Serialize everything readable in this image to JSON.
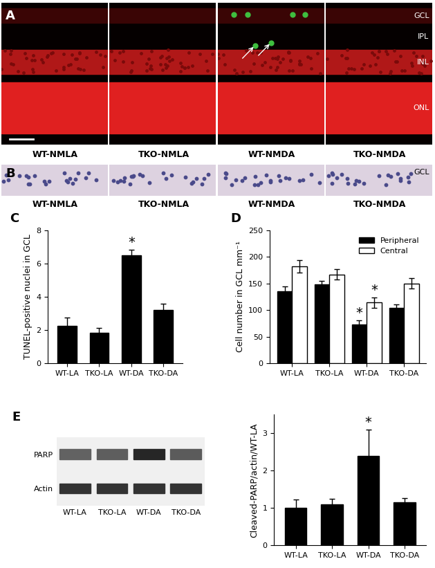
{
  "images": [
    {
      "panel": "A",
      "labels": [
        "WT-NMLA",
        "TKO-NMLA",
        "WT-NMDA",
        "TKO-NMDA"
      ],
      "layers": [
        "GCL",
        "IPL",
        "INL",
        "ONL"
      ]
    },
    {
      "panel": "B",
      "labels": [
        "WT-NMLA",
        "TKO-NMLA",
        "WT-NMDA",
        "TKO-NMDA"
      ],
      "layers": [
        "GCL"
      ]
    }
  ],
  "chart_data": [
    {
      "type": "bar",
      "title": "C",
      "y_label": "TUNEL-positive nuclei in GCL",
      "categories": [
        "WT-LA",
        "TKO-LA",
        "WT-DA",
        "TKO-DA"
      ],
      "values": [
        2.25,
        1.85,
        6.5,
        3.2
      ],
      "errors": [
        0.5,
        0.3,
        0.3,
        0.4
      ],
      "color": "#000000",
      "ylim": [
        0,
        8
      ],
      "yticks": [
        0,
        2,
        4,
        6,
        8
      ],
      "annotations": [
        {
          "text": "*",
          "category": "WT-DA"
        }
      ]
    },
    {
      "type": "bar",
      "title": "D",
      "y_label": "Cell number in GCL mm⁻¹",
      "categories": [
        "WT-LA",
        "TKO-LA",
        "WT-DA",
        "TKO-DA"
      ],
      "series": [
        {
          "name": "Peripheral",
          "color": "#000000",
          "values": [
            135,
            148,
            73,
            104
          ],
          "errors": [
            10,
            7,
            8,
            7
          ]
        },
        {
          "name": "Central",
          "color": "#ffffff",
          "values": [
            182,
            167,
            114,
            150
          ],
          "errors": [
            12,
            10,
            10,
            10
          ]
        }
      ],
      "legend": "upper right",
      "ylim": [
        0,
        250
      ],
      "yticks": [
        0,
        50,
        100,
        150,
        200,
        250
      ],
      "annotations": [
        {
          "text": "*",
          "category": "WT-DA",
          "series": "Peripheral"
        },
        {
          "text": "*",
          "category": "WT-DA",
          "series": "Central"
        }
      ]
    },
    {
      "type": "bar",
      "title": "E",
      "y_label": "Cleaved-PARP/actin/WT-LA",
      "categories": [
        "WT-LA",
        "TKO-LA",
        "WT-DA",
        "TKO-DA"
      ],
      "values": [
        1.0,
        1.1,
        2.4,
        1.15
      ],
      "errors": [
        0.22,
        0.15,
        0.7,
        0.12
      ],
      "color": "#000000",
      "ylim": [
        0,
        3.5
      ],
      "yticks": [
        0,
        1,
        2,
        3
      ],
      "annotations": [
        {
          "text": "*",
          "category": "WT-DA"
        }
      ],
      "blot": {
        "rows": [
          "PARP",
          "Actin"
        ],
        "lanes": [
          "WT-LA",
          "TKO-LA",
          "WT-DA",
          "TKO-DA"
        ]
      }
    }
  ]
}
